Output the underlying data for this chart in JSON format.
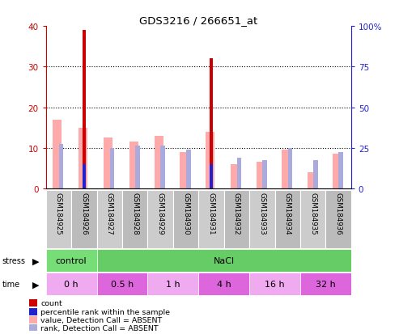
{
  "title": "GDS3216 / 266651_at",
  "samples": [
    "GSM184925",
    "GSM184926",
    "GSM184927",
    "GSM184928",
    "GSM184929",
    "GSM184930",
    "GSM184931",
    "GSM184932",
    "GSM184933",
    "GSM184934",
    "GSM184935",
    "GSM184936"
  ],
  "count": [
    0,
    39,
    0,
    0,
    0,
    0,
    32,
    0,
    0,
    0,
    0,
    0
  ],
  "percentile_rank": [
    0,
    15,
    0,
    0,
    0,
    0,
    15,
    0,
    0,
    0,
    0,
    0
  ],
  "value_absent": [
    17,
    15,
    12.5,
    11.5,
    13,
    9,
    14,
    6,
    6.5,
    9.5,
    4,
    8.5
  ],
  "rank_absent": [
    11,
    0,
    10,
    10.5,
    10.5,
    9.5,
    0,
    7.5,
    7,
    10,
    7,
    9
  ],
  "ylim_left": [
    0,
    40
  ],
  "ylim_right": [
    0,
    100
  ],
  "yticks_left": [
    0,
    10,
    20,
    30,
    40
  ],
  "yticks_right": [
    0,
    25,
    50,
    75,
    100
  ],
  "yticklabels_right": [
    "0",
    "25",
    "50",
    "75",
    "100%"
  ],
  "color_count": "#cc0000",
  "color_percentile": "#2222cc",
  "color_value_absent": "#ffaaaa",
  "color_rank_absent": "#aaaadd",
  "background_color": "#ffffff",
  "left_tick_color": "#cc0000",
  "right_tick_color": "#2222cc",
  "stress_groups": [
    {
      "label": "control",
      "start": 0,
      "end": 2,
      "color": "#77dd77"
    },
    {
      "label": "NaCl",
      "start": 2,
      "end": 12,
      "color": "#66cc66"
    }
  ],
  "time_groups": [
    {
      "label": "0 h",
      "start": 0,
      "end": 2,
      "color": "#f0aaf0"
    },
    {
      "label": "0.5 h",
      "start": 2,
      "end": 4,
      "color": "#dd66dd"
    },
    {
      "label": "1 h",
      "start": 4,
      "end": 6,
      "color": "#f0aaf0"
    },
    {
      "label": "4 h",
      "start": 6,
      "end": 8,
      "color": "#dd66dd"
    },
    {
      "label": "16 h",
      "start": 8,
      "end": 10,
      "color": "#f0aaf0"
    },
    {
      "label": "32 h",
      "start": 10,
      "end": 12,
      "color": "#dd66dd"
    }
  ],
  "legend_items": [
    {
      "color": "#cc0000",
      "label": "count"
    },
    {
      "color": "#2222cc",
      "label": "percentile rank within the sample"
    },
    {
      "color": "#ffaaaa",
      "label": "value, Detection Call = ABSENT"
    },
    {
      "color": "#aaaadd",
      "label": "rank, Detection Call = ABSENT"
    }
  ]
}
